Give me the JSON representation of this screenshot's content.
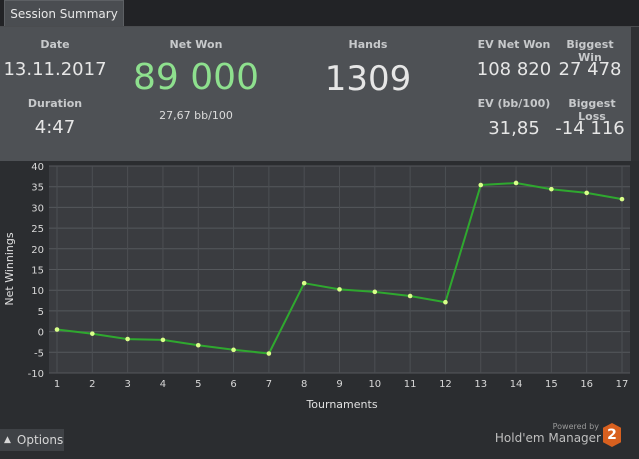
{
  "tab": {
    "label": "Session Summary"
  },
  "summary": {
    "date_label": "Date",
    "date_value": "13.11.2017",
    "duration_label": "Duration",
    "duration_value": "4:47",
    "net_won_label": "Net Won",
    "net_won_value": "89 000",
    "net_won_sub": "27,67 bb/100",
    "hands_label": "Hands",
    "hands_value": "1309",
    "ev_net_won_label": "EV Net Won",
    "ev_net_won_value": "108 820",
    "biggest_win_label": "Biggest Win",
    "biggest_win_value": "27 478",
    "ev_bb_label": "EV (bb/100)",
    "ev_bb_value": "31,85",
    "biggest_loss_label": "Biggest Loss",
    "biggest_loss_value": "-14 116"
  },
  "colors": {
    "net_won": "#8ee08e",
    "line": "#2fa82f",
    "point": "#d9ff8a"
  },
  "chart_data": {
    "type": "line",
    "xlabel": "Tournaments",
    "ylabel": "Net Winnings",
    "x": [
      1,
      2,
      3,
      4,
      5,
      6,
      7,
      8,
      9,
      10,
      11,
      12,
      13,
      14,
      15,
      16,
      17
    ],
    "series": [
      {
        "values": [
          0.5,
          -0.5,
          -1.8,
          -2.0,
          -3.3,
          -4.4,
          -5.3,
          11.7,
          10.2,
          9.6,
          8.6,
          7.1,
          35.4,
          35.9,
          34.4,
          33.5,
          32.0
        ]
      }
    ],
    "xlim": [
      1,
      17
    ],
    "ylim": [
      -10,
      40
    ],
    "yticks": [
      -10,
      -5,
      0,
      5,
      10,
      15,
      20,
      25,
      30,
      35,
      40
    ],
    "grid": true
  },
  "bottom": {
    "options_label": "Options",
    "options_icon": "chevron-up-icon",
    "powered_by": "Powered by",
    "brand": "Hold'em Manager",
    "logo_number": "2"
  }
}
